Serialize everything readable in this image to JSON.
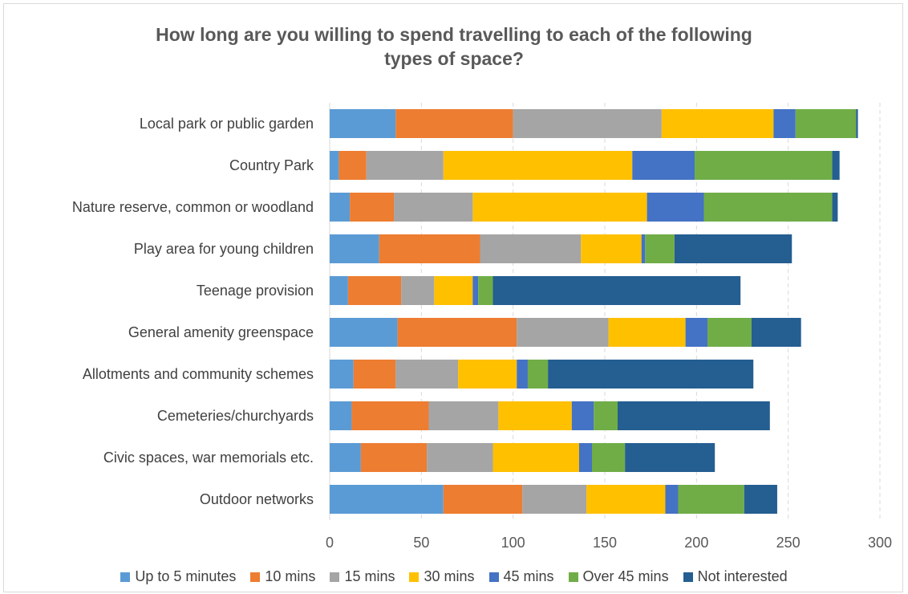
{
  "chart_data": {
    "type": "bar",
    "orientation": "horizontal",
    "stacked": true,
    "title_line1": "How long are you willing to spend travelling to each of the following",
    "title_line2": "types of space?",
    "categories": [
      "Local park or public garden",
      "Country Park",
      "Nature reserve, common or woodland",
      "Play area for young children",
      "Teenage provision",
      "General amenity greenspace",
      "Allotments and community schemes",
      "Cemeteries/churchyards",
      "Civic spaces, war memorials etc.",
      "Outdoor networks"
    ],
    "series": [
      {
        "name": "Up to 5 minutes",
        "color": "#5b9bd5",
        "values": [
          36,
          5,
          11,
          27,
          10,
          37,
          13,
          12,
          17,
          62
        ]
      },
      {
        "name": "10 mins",
        "color": "#ed7d31",
        "values": [
          64,
          15,
          24,
          55,
          29,
          65,
          23,
          42,
          36,
          43
        ]
      },
      {
        "name": "15 mins",
        "color": "#a5a5a5",
        "values": [
          81,
          42,
          43,
          55,
          18,
          50,
          34,
          38,
          36,
          35
        ]
      },
      {
        "name": "30 mins",
        "color": "#ffc000",
        "values": [
          61,
          103,
          95,
          33,
          21,
          42,
          32,
          40,
          47,
          43
        ]
      },
      {
        "name": "45 mins",
        "color": "#4472c4",
        "values": [
          12,
          34,
          31,
          2,
          3,
          12,
          6,
          12,
          7,
          7
        ]
      },
      {
        "name": "Over 45 mins",
        "color": "#70ad47",
        "values": [
          33,
          75,
          70,
          16,
          8,
          24,
          11,
          13,
          18,
          36
        ]
      },
      {
        "name": "Not interested",
        "color": "#255e91",
        "values": [
          1,
          4,
          3,
          64,
          135,
          27,
          112,
          83,
          49,
          18
        ]
      }
    ],
    "xlim": [
      0,
      300
    ],
    "xticks": [
      0,
      50,
      100,
      150,
      200,
      250,
      300
    ],
    "grid": "vertical dashed",
    "legend_position": "bottom"
  }
}
